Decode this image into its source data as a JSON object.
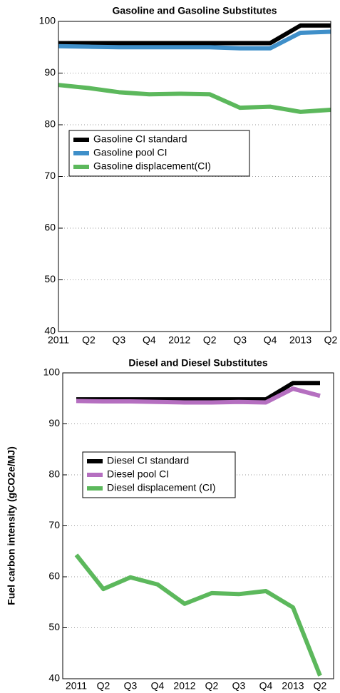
{
  "chart_data": [
    {
      "type": "line",
      "title": "Gasoline and Gasoline Substitutes",
      "categories": [
        "2011",
        "Q2",
        "Q3",
        "Q4",
        "2012",
        "Q2",
        "Q3",
        "Q4",
        "2013",
        "Q2"
      ],
      "series": [
        {
          "name": "Gasoline CI standard",
          "color": "#000000",
          "values": [
            95.8,
            95.8,
            95.8,
            95.8,
            95.8,
            95.8,
            95.8,
            95.8,
            99.2,
            99.2
          ]
        },
        {
          "name": "Gasoline pool CI",
          "color": "#3f8fc9",
          "values": [
            95.2,
            95.1,
            95.0,
            95.0,
            95.0,
            95.0,
            94.8,
            94.8,
            97.8,
            98.0
          ]
        },
        {
          "name": "Gasoline displacement(CI)",
          "color": "#5cb85c",
          "values": [
            87.7,
            87.1,
            86.3,
            85.9,
            86.0,
            85.9,
            83.3,
            83.5,
            82.5,
            82.9
          ]
        }
      ],
      "ylim": [
        40,
        100
      ],
      "yticks": [
        40,
        50,
        60,
        70,
        80,
        90,
        100
      ],
      "grid": true
    },
    {
      "type": "line",
      "title": "Diesel and Diesel Substitutes",
      "ylabel": "Fuel carbon intensity (gCO2e/MJ)",
      "categories": [
        "2011",
        "Q2",
        "Q3",
        "Q4",
        "2012",
        "Q2",
        "Q3",
        "Q4",
        "2013",
        "Q2"
      ],
      "series": [
        {
          "name": "Diesel CI standard",
          "color": "#000000",
          "values": [
            94.8,
            94.8,
            94.8,
            94.8,
            94.8,
            94.8,
            94.8,
            94.8,
            98.0,
            98.0
          ]
        },
        {
          "name": "Diesel pool CI",
          "color": "#b56fc0",
          "values": [
            94.5,
            94.4,
            94.4,
            94.3,
            94.2,
            94.2,
            94.3,
            94.2,
            96.9,
            95.5
          ]
        },
        {
          "name": "Diesel displacement (CI)",
          "color": "#5cb85c",
          "values": [
            64.3,
            57.6,
            59.9,
            58.5,
            54.7,
            56.8,
            56.6,
            57.2,
            54.0,
            40.6
          ]
        }
      ],
      "ylim": [
        40,
        100
      ],
      "yticks": [
        40,
        50,
        60,
        70,
        80,
        90,
        100
      ],
      "grid": true
    }
  ]
}
